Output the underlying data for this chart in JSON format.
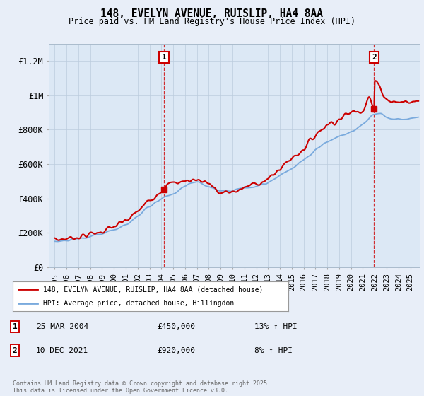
{
  "title": "148, EVELYN AVENUE, RUISLIP, HA4 8AA",
  "subtitle": "Price paid vs. HM Land Registry's House Price Index (HPI)",
  "ylim": [
    0,
    1300000
  ],
  "yticks": [
    0,
    200000,
    400000,
    600000,
    800000,
    1000000,
    1200000
  ],
  "ytick_labels": [
    "£0",
    "£200K",
    "£400K",
    "£600K",
    "£800K",
    "£1M",
    "£1.2M"
  ],
  "background_color": "#e8eef8",
  "plot_bg_color": "#dce8f5",
  "legend_label_red": "148, EVELYN AVENUE, RUISLIP, HA4 8AA (detached house)",
  "legend_label_blue": "HPI: Average price, detached house, Hillingdon",
  "annotation1_date": "25-MAR-2004",
  "annotation1_price": "£450,000",
  "annotation1_hpi": "13% ↑ HPI",
  "annotation2_date": "10-DEC-2021",
  "annotation2_price": "£920,000",
  "annotation2_hpi": "8% ↑ HPI",
  "footer": "Contains HM Land Registry data © Crown copyright and database right 2025.\nThis data is licensed under the Open Government Licence v3.0.",
  "red_color": "#cc0000",
  "blue_color": "#7aaadd",
  "point1_x": 2004.23,
  "point1_y": 450000,
  "point2_x": 2021.94,
  "point2_y": 920000,
  "xlim_left": 1994.5,
  "xlim_right": 2025.8,
  "xtick_years": [
    1995,
    1996,
    1997,
    1998,
    1999,
    2000,
    2001,
    2002,
    2003,
    2004,
    2005,
    2006,
    2007,
    2008,
    2009,
    2010,
    2011,
    2012,
    2013,
    2014,
    2015,
    2016,
    2017,
    2018,
    2019,
    2020,
    2021,
    2022,
    2023,
    2024,
    2025
  ]
}
